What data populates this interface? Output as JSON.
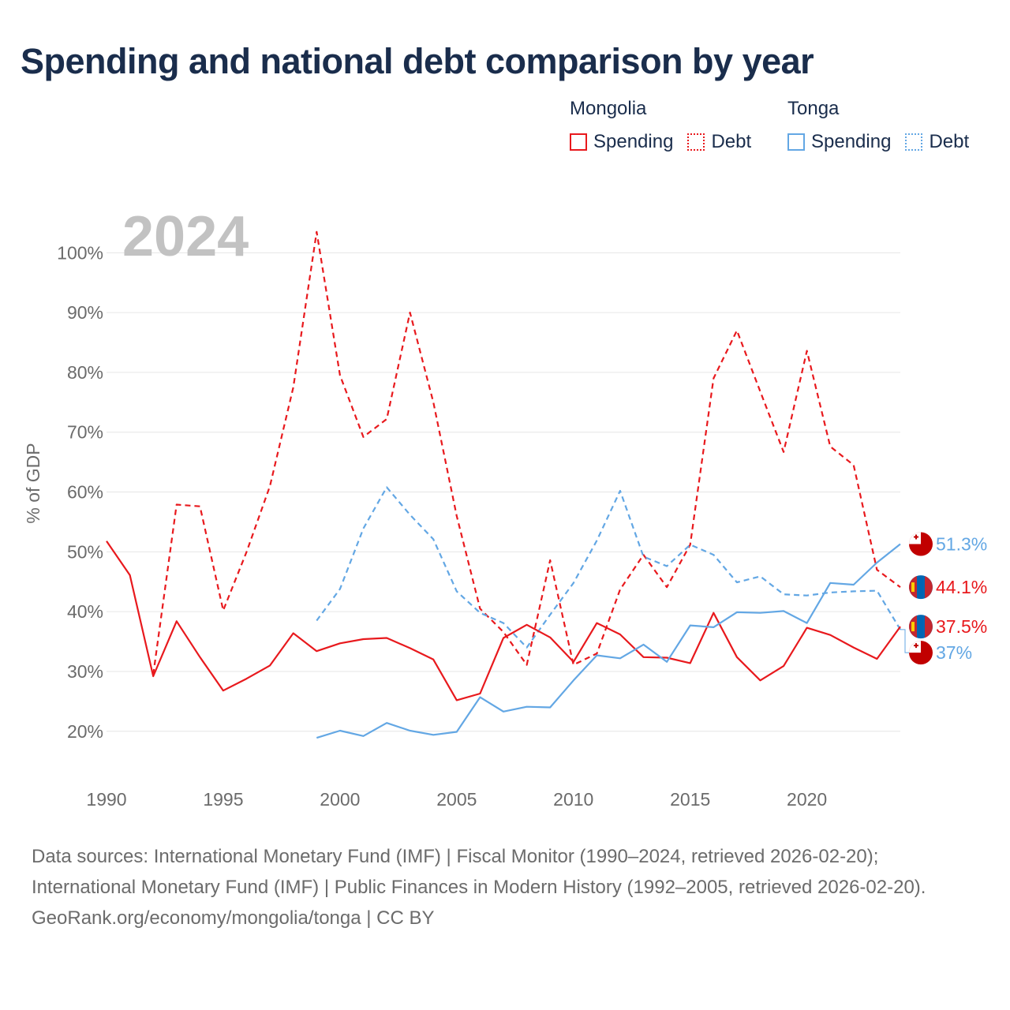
{
  "title": "Spending and national debt comparison by year",
  "legend": {
    "groups": [
      {
        "name": "Mongolia",
        "color": "#e8191d",
        "items": [
          {
            "label": "Spending",
            "style": "solid"
          },
          {
            "label": "Debt",
            "style": "dotted"
          }
        ]
      },
      {
        "name": "Tonga",
        "color": "#63a7e4",
        "items": [
          {
            "label": "Spending",
            "style": "solid"
          },
          {
            "label": "Debt",
            "style": "dotted"
          }
        ]
      }
    ]
  },
  "chart_data": {
    "type": "line",
    "year_watermark": "2024",
    "ylabel": "% of GDP",
    "xlim": [
      1990,
      2024
    ],
    "ylim": [
      11,
      104
    ],
    "xticks": [
      1990,
      1995,
      2000,
      2005,
      2010,
      2015,
      2020
    ],
    "yticks": [
      20,
      30,
      40,
      50,
      60,
      70,
      80,
      90,
      100
    ],
    "ytick_labels": [
      "20%",
      "30%",
      "40%",
      "50%",
      "60%",
      "70%",
      "80%",
      "90%",
      "100%"
    ],
    "series": [
      {
        "name": "Mongolia Debt",
        "country": "Mongolia",
        "metric": "Debt",
        "color": "#e8191d",
        "dash": true,
        "x": [
          1992,
          1993,
          1994,
          1995,
          1996,
          1997,
          1998,
          1999,
          2000,
          2001,
          2002,
          2003,
          2004,
          2005,
          2006,
          2007,
          2008,
          2009,
          2010,
          2011,
          2012,
          2013,
          2014,
          2015,
          2016,
          2017,
          2018,
          2019,
          2020,
          2021,
          2022,
          2023,
          2024
        ],
        "y": [
          29.5,
          57.9,
          57.6,
          40.2,
          50,
          61,
          77.5,
          103.5,
          79.5,
          69.2,
          72.2,
          90,
          75,
          56,
          40.5,
          36.6,
          31.1,
          48.6,
          31.1,
          33,
          43.7,
          49.5,
          44.1,
          51.2,
          79,
          87,
          76.8,
          66.7,
          83.6,
          67.6,
          64.5,
          47,
          44.1
        ],
        "end_label": "44.1%"
      },
      {
        "name": "Tonga Debt",
        "country": "Tonga",
        "metric": "Debt",
        "color": "#63a7e4",
        "dash": true,
        "x": [
          1999,
          2000,
          2001,
          2002,
          2003,
          2004,
          2005,
          2006,
          2007,
          2008,
          2009,
          2010,
          2011,
          2012,
          2013,
          2014,
          2015,
          2016,
          2017,
          2018,
          2019,
          2020,
          2021,
          2022,
          2023,
          2024
        ],
        "y": [
          38.5,
          43.8,
          53.9,
          60.8,
          56.2,
          52.1,
          43.4,
          39.8,
          38.1,
          34,
          39.5,
          44.8,
          51.9,
          60.2,
          49.2,
          47.6,
          51.2,
          49.5,
          44.9,
          45.9,
          42.9,
          42.7,
          43.2,
          43.4,
          43.5,
          37
        ],
        "end_label": "37%"
      },
      {
        "name": "Mongolia Spending",
        "country": "Mongolia",
        "metric": "Spending",
        "color": "#e8191d",
        "dash": false,
        "x": [
          1990,
          1991,
          1992,
          1993,
          1994,
          1995,
          1996,
          1997,
          1998,
          1999,
          2000,
          2001,
          2002,
          2003,
          2004,
          2005,
          2006,
          2007,
          2008,
          2009,
          2010,
          2011,
          2012,
          2013,
          2014,
          2015,
          2016,
          2017,
          2018,
          2019,
          2020,
          2021,
          2022,
          2023,
          2024
        ],
        "y": [
          51.8,
          46.1,
          29.2,
          38.4,
          32.4,
          26.8,
          28.8,
          31,
          36.4,
          33.4,
          34.7,
          35.4,
          35.6,
          33.9,
          32,
          25.2,
          26.3,
          35.6,
          37.8,
          35.7,
          31.6,
          38.1,
          36.2,
          32.4,
          32.3,
          31.4,
          39.8,
          32.4,
          28.5,
          30.9,
          37.3,
          36.1,
          34,
          32.1,
          37.5
        ],
        "end_label": "37.5%"
      },
      {
        "name": "Tonga Spending",
        "country": "Tonga",
        "metric": "Spending",
        "color": "#63a7e4",
        "dash": false,
        "x": [
          1999,
          2000,
          2001,
          2002,
          2003,
          2004,
          2005,
          2006,
          2007,
          2008,
          2009,
          2010,
          2011,
          2012,
          2013,
          2014,
          2015,
          2016,
          2017,
          2018,
          2019,
          2020,
          2021,
          2022,
          2023,
          2024
        ],
        "y": [
          18.9,
          20.1,
          19.2,
          21.4,
          20.1,
          19.4,
          19.9,
          25.7,
          23.3,
          24.1,
          24,
          28.5,
          32.7,
          32.2,
          34.5,
          31.6,
          37.7,
          37.4,
          39.9,
          39.8,
          40.1,
          38.1,
          44.8,
          44.5,
          48.2,
          51.3
        ],
        "end_label": "51.3%"
      }
    ]
  },
  "footer": {
    "sources": "Data sources: International Monetary Fund (IMF) | Fiscal Monitor (1990–2024, retrieved 2026-02-20); International Monetary Fund (IMF) | Public Finances in Modern History (1992–2005, retrieved 2026-02-20).",
    "credit": "GeoRank.org/economy/mongolia/tonga | CC BY"
  }
}
